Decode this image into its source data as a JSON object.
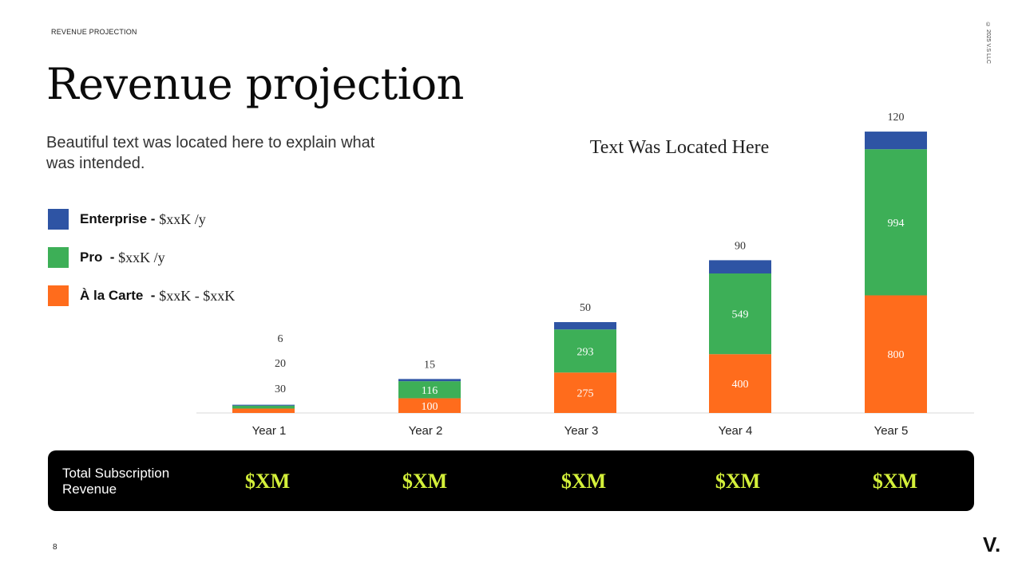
{
  "header": {
    "section_label": "REVENUE PROJECTION",
    "copyright": "© 2025 V.S LLC"
  },
  "title": "Revenue projection",
  "subtitle": "Beautiful text was located here to explain what was intended.",
  "legend": [
    {
      "name": "Enterprise - ",
      "price": "$xxK /y",
      "color": "#2e54a4"
    },
    {
      "name": "Pro  - ",
      "price": "$xxK /y",
      "color": "#3daf57"
    },
    {
      "name": "À la Carte  - ",
      "price": "$xxK - $xxK",
      "color": "#ff6c1c"
    }
  ],
  "chart_data": {
    "type": "bar",
    "stacked": true,
    "title": "Text Was Located Here",
    "categories": [
      "Year 1",
      "Year 2",
      "Year 3",
      "Year 4",
      "Year 5"
    ],
    "series": [
      {
        "name": "À la Carte",
        "color": "#ff6c1c",
        "label_color": "#ffffff",
        "values": [
          30,
          100,
          275,
          400,
          800
        ]
      },
      {
        "name": "Pro",
        "color": "#3daf57",
        "label_color": "#ffffff",
        "values": [
          20,
          116,
          293,
          549,
          994
        ]
      },
      {
        "name": "Enterprise",
        "color": "#2e54a4",
        "label_color": "#333333",
        "values": [
          6,
          15,
          50,
          90,
          120
        ]
      }
    ],
    "xlabel": "",
    "ylabel": "",
    "grid": false,
    "legend_position": "left"
  },
  "revenue": {
    "label": "Total Subscription Revenue",
    "values": [
      "$XM",
      "$XM",
      "$XM",
      "$XM",
      "$XM"
    ]
  },
  "footer": {
    "page_number": "8",
    "logo": "V."
  }
}
